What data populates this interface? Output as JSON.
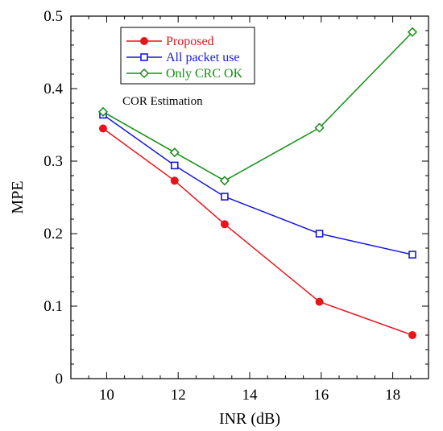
{
  "chart_data": {
    "type": "line",
    "xlabel": "INR (dB)",
    "ylabel": "MPE",
    "xlim": [
      9,
      19
    ],
    "ylim": [
      0,
      0.5
    ],
    "xticks": [
      "10",
      "12",
      "14",
      "16",
      "18"
    ],
    "yticks": [
      "0",
      "0.1",
      "0.2",
      "0.3",
      "0.4",
      "0.5"
    ],
    "annotation": "COR Estimation",
    "legend_position": "top-left",
    "grid": false,
    "series": [
      {
        "name": "Proposed",
        "color": "#e8141c",
        "marker": "filled-circle",
        "points": [
          {
            "x": 9.9,
            "y": 0.345
          },
          {
            "x": 11.9,
            "y": 0.273
          },
          {
            "x": 13.3,
            "y": 0.213
          },
          {
            "x": 15.95,
            "y": 0.106
          },
          {
            "x": 18.55,
            "y": 0.06
          }
        ]
      },
      {
        "name": "All packet use",
        "color": "#1818e0",
        "marker": "open-square",
        "points": [
          {
            "x": 9.9,
            "y": 0.364
          },
          {
            "x": 11.9,
            "y": 0.294
          },
          {
            "x": 13.3,
            "y": 0.251
          },
          {
            "x": 15.95,
            "y": 0.2
          },
          {
            "x": 18.55,
            "y": 0.171
          }
        ]
      },
      {
        "name": "Only CRC OK",
        "color": "#138f13",
        "marker": "open-diamond",
        "points": [
          {
            "x": 9.9,
            "y": 0.368
          },
          {
            "x": 11.9,
            "y": 0.312
          },
          {
            "x": 13.3,
            "y": 0.273
          },
          {
            "x": 15.95,
            "y": 0.346
          },
          {
            "x": 18.55,
            "y": 0.478
          }
        ]
      }
    ]
  }
}
